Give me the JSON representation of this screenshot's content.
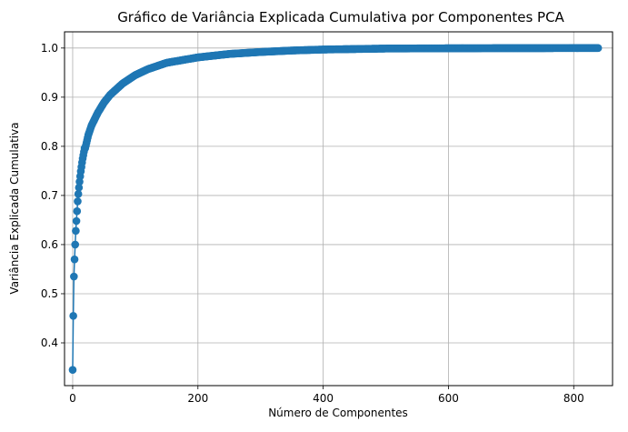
{
  "chart_data": {
    "type": "line",
    "title": "Gráfico de Variância Explicada Cumulativa por Componentes PCA",
    "xlabel": "Número de Componentes",
    "ylabel": "Variância Explicada Cumulativa",
    "xlim": [
      -13,
      862
    ],
    "ylim": [
      0.313,
      1.033
    ],
    "x_ticks": [
      0,
      200,
      400,
      600,
      800
    ],
    "y_ticks": [
      0.4,
      0.5,
      0.6,
      0.7,
      0.8,
      0.9,
      1.0
    ],
    "x_tick_labels": [
      "0",
      "200",
      "400",
      "600",
      "800"
    ],
    "y_tick_labels": [
      "0.4",
      "0.5",
      "0.6",
      "0.7",
      "0.8",
      "0.9",
      "1.0"
    ],
    "grid": true,
    "marker": "circle",
    "series": [
      {
        "color": "#1f77b4",
        "n_points": 840,
        "first_values": [
          0.345,
          0.455,
          0.535,
          0.57,
          0.6,
          0.628,
          0.648,
          0.668,
          0.688,
          0.703,
          0.716,
          0.728,
          0.739,
          0.749,
          0.758,
          0.767,
          0.775,
          0.782,
          0.789,
          0.796
        ],
        "knots": [
          [
            20,
            0.796
          ],
          [
            25,
            0.823
          ],
          [
            30,
            0.842
          ],
          [
            40,
            0.868
          ],
          [
            50,
            0.889
          ],
          [
            60,
            0.905
          ],
          [
            80,
            0.928
          ],
          [
            100,
            0.945
          ],
          [
            120,
            0.957
          ],
          [
            150,
            0.97
          ],
          [
            200,
            0.981
          ],
          [
            250,
            0.988
          ],
          [
            300,
            0.992
          ],
          [
            350,
            0.995
          ],
          [
            400,
            0.997
          ],
          [
            500,
            0.999
          ],
          [
            600,
            0.9995
          ],
          [
            700,
            0.9998
          ],
          [
            840,
            1.0
          ]
        ]
      }
    ]
  }
}
